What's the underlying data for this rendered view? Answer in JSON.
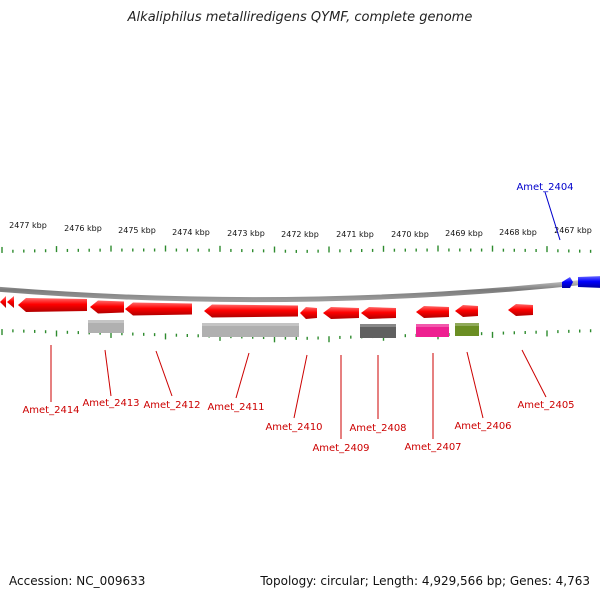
{
  "title": "Alkaliphilus metalliredigens QYMF, complete genome",
  "accession": "Accession: NC_009633",
  "topology": "Topology: circular; Length: 4,929,566 bp; Genes: 4,763",
  "colors": {
    "backbone": "#888888",
    "tick": "#2e8b2e",
    "red_gene": "#ff0000",
    "blue_gene": "#0000ff",
    "label_red": "#cc0000",
    "label_blue": "#0000cc"
  },
  "scale_labels": [
    "2477 kbp",
    "2476 kbp",
    "2475 kbp",
    "2474 kbp",
    "2473 kbp",
    "2472 kbp",
    "2471 kbp",
    "2470 kbp",
    "2469 kbp",
    "2468 kbp",
    "2467 kbp"
  ],
  "genes": [
    {
      "name": "Amet_2414",
      "color": "#ff0000",
      "strand": "minus",
      "label_color": "#cc0000"
    },
    {
      "name": "Amet_2413",
      "color": "#ff0000",
      "strand": "minus",
      "label_color": "#cc0000"
    },
    {
      "name": "Amet_2412",
      "color": "#ff0000",
      "strand": "minus",
      "label_color": "#cc0000"
    },
    {
      "name": "Amet_2411",
      "color": "#ff0000",
      "strand": "minus",
      "label_color": "#cc0000"
    },
    {
      "name": "Amet_2410",
      "color": "#ff0000",
      "strand": "minus",
      "label_color": "#cc0000"
    },
    {
      "name": "Amet_2409",
      "color": "#ff0000",
      "strand": "minus",
      "label_color": "#cc0000"
    },
    {
      "name": "Amet_2408",
      "color": "#ff0000",
      "strand": "minus",
      "label_color": "#cc0000"
    },
    {
      "name": "Amet_2407",
      "color": "#ff0000",
      "strand": "minus",
      "label_color": "#cc0000"
    },
    {
      "name": "Amet_2406",
      "color": "#ff0000",
      "strand": "minus",
      "label_color": "#cc0000"
    },
    {
      "name": "Amet_2405",
      "color": "#ff0000",
      "strand": "minus",
      "label_color": "#cc0000"
    },
    {
      "name": "Amet_2404",
      "color": "#0000ff",
      "strand": "plus",
      "label_color": "#0000cc"
    }
  ],
  "feature_boxes": [
    {
      "color": "#b0b0b0"
    },
    {
      "color": "#b0b0b0"
    },
    {
      "color": "#606060"
    },
    {
      "color": "#ee2090"
    },
    {
      "color": "#6b8e23"
    }
  ]
}
